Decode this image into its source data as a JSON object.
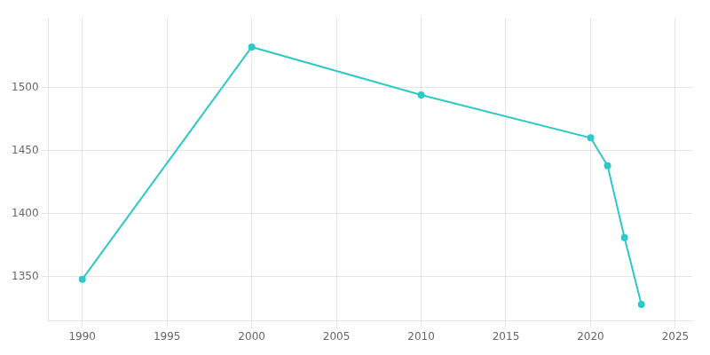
{
  "chart_data": {
    "type": "line",
    "x": [
      1990,
      2000,
      2010,
      2020,
      2021,
      2022,
      2023
    ],
    "values": [
      1348,
      1532,
      1494,
      1460,
      1438,
      1381,
      1328
    ],
    "color": "#2ec8c8",
    "marker": "circle",
    "xlim": [
      1988,
      2026
    ],
    "ylim": [
      1315,
      1555
    ],
    "xticks": [
      1990,
      1995,
      2000,
      2005,
      2010,
      2015,
      2020,
      2025
    ],
    "yticks": [
      1350,
      1400,
      1450,
      1500
    ],
    "grid": true
  }
}
